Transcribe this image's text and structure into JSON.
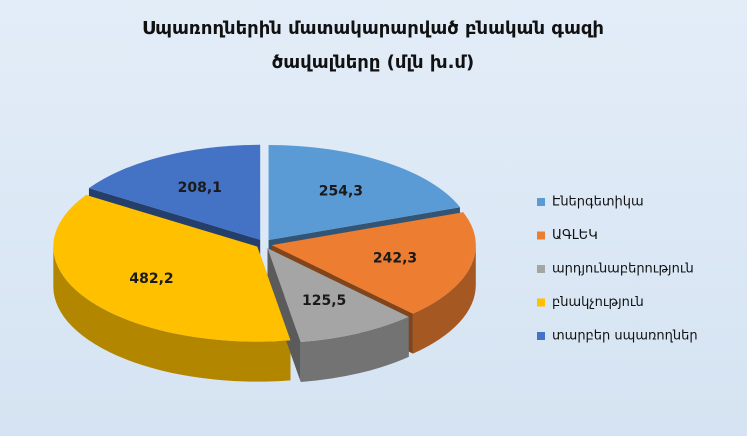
{
  "chart_data": {
    "type": "pie3d",
    "title": "Սպառողներին մատակարարված բնական գազի ծավալները (մլն խ.մ)",
    "categories": [
      "Էներգետիկա",
      "ԱԳԼԵԿ",
      "արդյունաբերություն",
      "բնակչություն",
      "տարբեր սպառողներ"
    ],
    "values": [
      254.3,
      242.3,
      125.5,
      482.2,
      208.1
    ],
    "value_labels": [
      "254,3",
      "242,3",
      "125,5",
      "482,2",
      "208,1"
    ],
    "colors": [
      "#5b9bd5",
      "#ed7d31",
      "#a5a5a5",
      "#ffc000",
      "#4472c4"
    ],
    "legend": "right"
  }
}
